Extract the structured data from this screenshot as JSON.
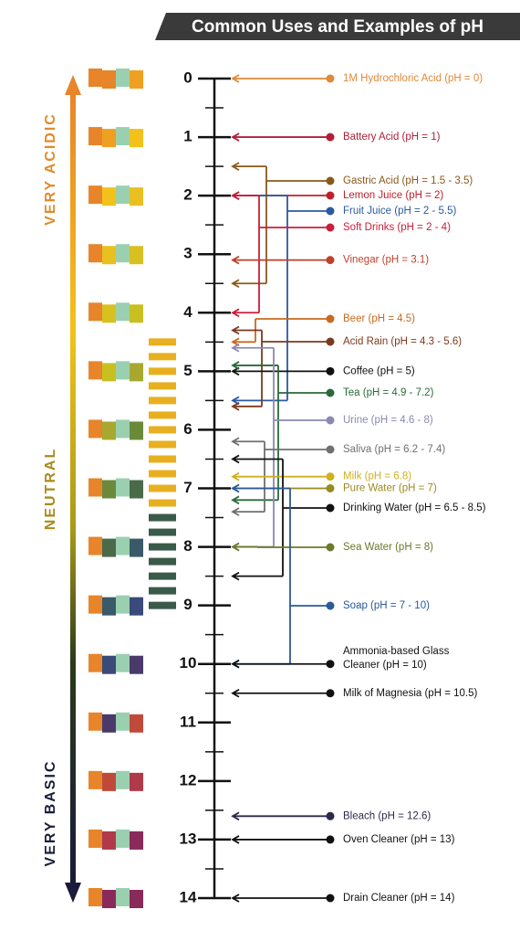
{
  "header": {
    "title": "Common Uses and Examples of pH"
  },
  "side_labels": [
    {
      "text": "VERY ACIDIC",
      "color": "#e08a2a"
    },
    {
      "text": "NEUTRAL",
      "color": "#a88a1a"
    },
    {
      "text": "VERY BASIC",
      "color": "#1a1f3a"
    }
  ],
  "scale": {
    "ticks": [
      0,
      1,
      2,
      3,
      4,
      5,
      6,
      7,
      8,
      9,
      10,
      11,
      12,
      13,
      14
    ]
  },
  "items": [
    {
      "lines": [
        "1M Hydrochloric Acid (pH = 0)"
      ],
      "color": "#e0893a",
      "ph": [
        0
      ]
    },
    {
      "lines": [
        "Battery Acid (pH = 1)"
      ],
      "color": "#b0203a",
      "ph": [
        1
      ]
    },
    {
      "lines": [
        "Gastric Acid (pH = 1.5 - 3.5)"
      ],
      "color": "#8a5a1a",
      "ph": [
        1.5,
        3.5
      ]
    },
    {
      "lines": [
        "Lemon Juice (pH = 2)"
      ],
      "color": "#c0202a",
      "ph": [
        2
      ]
    },
    {
      "lines": [
        "Fruit Juice (pH = 2 - 5.5)"
      ],
      "color": "#2a5aa0",
      "ph": [
        2,
        5.5
      ]
    },
    {
      "lines": [
        "Soft Drinks (pH = 2 - 4)"
      ],
      "color": "#c81e3a",
      "ph": [
        2,
        4
      ]
    },
    {
      "lines": [
        "Vinegar (pH = 3.1)"
      ],
      "color": "#c0402a",
      "ph": [
        3.1
      ]
    },
    {
      "lines": [
        "Beer (pH = 4.5)"
      ],
      "color": "#c86a20",
      "ph": [
        4.5
      ]
    },
    {
      "lines": [
        "Acid Rain (pH = 4.3 - 5.6)"
      ],
      "color": "#7a3a20",
      "ph": [
        4.3,
        5.6
      ]
    },
    {
      "lines": [
        "Coffee (pH = 5)"
      ],
      "color": "#111111",
      "ph": [
        5
      ]
    },
    {
      "lines": [
        "Tea (pH = 4.9 - 7.2)"
      ],
      "color": "#2a6a3a",
      "ph": [
        4.9,
        7.2
      ]
    },
    {
      "lines": [
        "Urine (pH = 4.6 - 8)"
      ],
      "color": "#8a8ab0",
      "ph": [
        4.6,
        8
      ]
    },
    {
      "lines": [
        "Saliva (pH = 6.2 - 7.4)"
      ],
      "color": "#707070",
      "ph": [
        6.2,
        7.4
      ]
    },
    {
      "lines": [
        "Milk (pH = 6.8)"
      ],
      "color": "#d0b020",
      "ph": [
        6.8
      ]
    },
    {
      "lines": [
        "Pure Water (pH = 7)"
      ],
      "color": "#9a8a20",
      "ph": [
        7
      ]
    },
    {
      "lines": [
        "Drinking Water (pH = 6.5 - 8.5)"
      ],
      "color": "#111111",
      "ph": [
        6.5,
        8.5
      ]
    },
    {
      "lines": [
        "Sea Water (pH = 8)"
      ],
      "color": "#6a7a2a",
      "ph": [
        8
      ]
    },
    {
      "lines": [
        "Soap (pH = 7 - 10)"
      ],
      "color": "#2a5a9a",
      "ph": [
        7,
        10
      ]
    },
    {
      "lines": [
        "Ammonia-based Glass",
        "Cleaner (pH = 10)"
      ],
      "color": "#111111",
      "ph": [
        10
      ]
    },
    {
      "lines": [
        "Milk of Magnesia (pH = 10.5)"
      ],
      "color": "#111111",
      "ph": [
        10.5
      ]
    },
    {
      "lines": [
        "Bleach (pH = 12.6)"
      ],
      "color": "#2a2a4a",
      "ph": [
        12.6
      ]
    },
    {
      "lines": [
        "Oven Cleaner (pH = 13)"
      ],
      "color": "#111111",
      "ph": [
        13
      ]
    },
    {
      "lines": [
        "Drain Cleaner (pH = 14)"
      ],
      "color": "#111111",
      "ph": [
        14
      ]
    }
  ]
}
